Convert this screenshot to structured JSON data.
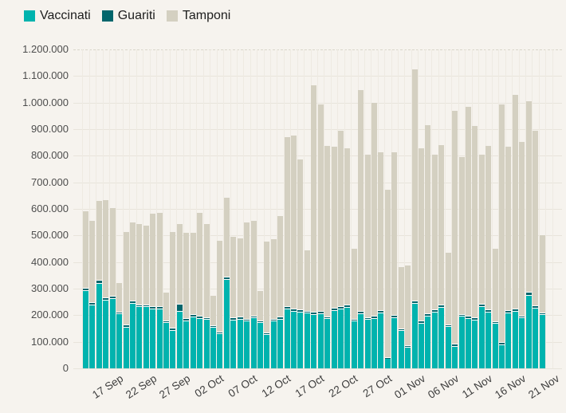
{
  "legend": [
    {
      "label": "Vaccinati",
      "color": "#00b3ae"
    },
    {
      "label": "Guariti",
      "color": "#02666c"
    },
    {
      "label": "Tamponi",
      "color": "#d4d0c1"
    }
  ],
  "colors": {
    "background": "#f6f3ee",
    "grid": "#e8e4db",
    "grid_vertical": "#eeeae2",
    "axis_text": "#4d4d4d",
    "tick_text": "#3d3d3d",
    "legend_text": "#1d1d1d",
    "bar_gap": "#ffffff"
  },
  "chart_data": {
    "type": "bar",
    "stacked": true,
    "title": "",
    "xlabel": "",
    "ylabel": "",
    "ylim": [
      0,
      1200000
    ],
    "grid": true,
    "legend_position": "top-left",
    "y_tick_labels": [
      "0",
      "100.000",
      "200.000",
      "300.000",
      "400.000",
      "500.000",
      "600.000",
      "700.000",
      "800.000",
      "900.000",
      "1.000.000",
      "1.100.000",
      "1.200.000"
    ],
    "x": [
      "14 Sep",
      "15 Sep",
      "16 Sep",
      "17 Sep",
      "18 Sep",
      "19 Sep",
      "20 Sep",
      "21 Sep",
      "22 Sep",
      "23 Sep",
      "24 Sep",
      "25 Sep",
      "26 Sep",
      "27 Sep",
      "28 Sep",
      "29 Sep",
      "30 Sep",
      "01 Oct",
      "02 Oct",
      "03 Oct",
      "04 Oct",
      "05 Oct",
      "06 Oct",
      "07 Oct",
      "08 Oct",
      "09 Oct",
      "10 Oct",
      "11 Oct",
      "12 Oct",
      "13 Oct",
      "14 Oct",
      "15 Oct",
      "16 Oct",
      "17 Oct",
      "18 Oct",
      "19 Oct",
      "20 Oct",
      "21 Oct",
      "22 Oct",
      "23 Oct",
      "24 Oct",
      "25 Oct",
      "26 Oct",
      "27 Oct",
      "28 Oct",
      "29 Oct",
      "30 Oct",
      "31 Oct",
      "01 Nov",
      "02 Nov",
      "03 Nov",
      "04 Nov",
      "05 Nov",
      "06 Nov",
      "07 Nov",
      "08 Nov",
      "09 Nov",
      "10 Nov",
      "11 Nov",
      "12 Nov",
      "13 Nov",
      "14 Nov",
      "15 Nov",
      "16 Nov",
      "17 Nov",
      "18 Nov",
      "19 Nov",
      "20 Nov",
      "21 Nov"
    ],
    "x_tick_indices": [
      3,
      8,
      13,
      18,
      23,
      28,
      33,
      38,
      43,
      48,
      53,
      58,
      63,
      68
    ],
    "x_tick_labels": [
      "17 Sep",
      "22 Sep",
      "27 Sep",
      "02 Oct",
      "07 Oct",
      "12 Oct",
      "17 Oct",
      "22 Oct",
      "27 Oct",
      "01 Nov",
      "06 Nov",
      "11 Nov",
      "16 Nov",
      "21 Nov"
    ],
    "series": [
      {
        "name": "Vaccinati",
        "color": "#00b3ae",
        "values": [
          290000,
          236000,
          318000,
          254000,
          261000,
          204000,
          154000,
          242000,
          230000,
          230000,
          222000,
          223000,
          170000,
          142000,
          214000,
          178000,
          192000,
          186000,
          182000,
          152000,
          128000,
          334000,
          180000,
          184000,
          176000,
          188000,
          170000,
          125000,
          176000,
          184000,
          222000,
          214000,
          210000,
          206000,
          200000,
          204000,
          185000,
          216000,
          221000,
          228000,
          176000,
          204000,
          182000,
          185000,
          208000,
          35000,
          190000,
          140000,
          78000,
          243000,
          168000,
          196000,
          211000,
          229000,
          156000,
          81000,
          194000,
          186000,
          181000,
          231000,
          211000,
          168000,
          88000,
          206000,
          212000,
          188000,
          274000,
          224000,
          200000
        ]
      },
      {
        "name": "Guariti",
        "color": "#02666c",
        "values": [
          8000,
          6000,
          8000,
          8000,
          7000,
          4000,
          5000,
          6000,
          5000,
          5000,
          5000,
          5000,
          4000,
          5000,
          24000,
          6000,
          5000,
          5000,
          5000,
          4000,
          4000,
          6000,
          5000,
          5000,
          5000,
          5000,
          4000,
          4000,
          5000,
          5000,
          5000,
          6000,
          6000,
          5000,
          6000,
          6000,
          5000,
          5000,
          6000,
          5000,
          5000,
          6000,
          5000,
          6000,
          5000,
          2000,
          5000,
          5000,
          4000,
          7000,
          5000,
          5000,
          6000,
          6000,
          4000,
          5000,
          5000,
          6000,
          5000,
          5000,
          5000,
          4000,
          4000,
          6000,
          8000,
          5000,
          7000,
          6000,
          5000
        ]
      },
      {
        "name": "Tamponi",
        "color": "#d4d0c1",
        "values": [
          288000,
          306000,
          298000,
          366000,
          330000,
          107000,
          347000,
          296000,
          301000,
          297000,
          349000,
          350000,
          104000,
          361000,
          300000,
          320000,
          307000,
          387000,
          351000,
          110000,
          342000,
          296000,
          303000,
          293000,
          363000,
          355000,
          112000,
          341000,
          299000,
          379000,
          637000,
          651000,
          565000,
          227000,
          852000,
          778000,
          641000,
          608000,
          661000,
          588000,
          263000,
          830000,
          611000,
          803000,
          593000,
          628000,
          611000,
          230000,
          300000,
          868000,
          648000,
          707000,
          581000,
          599000,
          268000,
          878000,
          589000,
          786000,
          720000,
          562000,
          615000,
          272000,
          896000,
          616000,
          804000,
          653000,
          717000,
          658000,
          289000
        ]
      }
    ]
  }
}
